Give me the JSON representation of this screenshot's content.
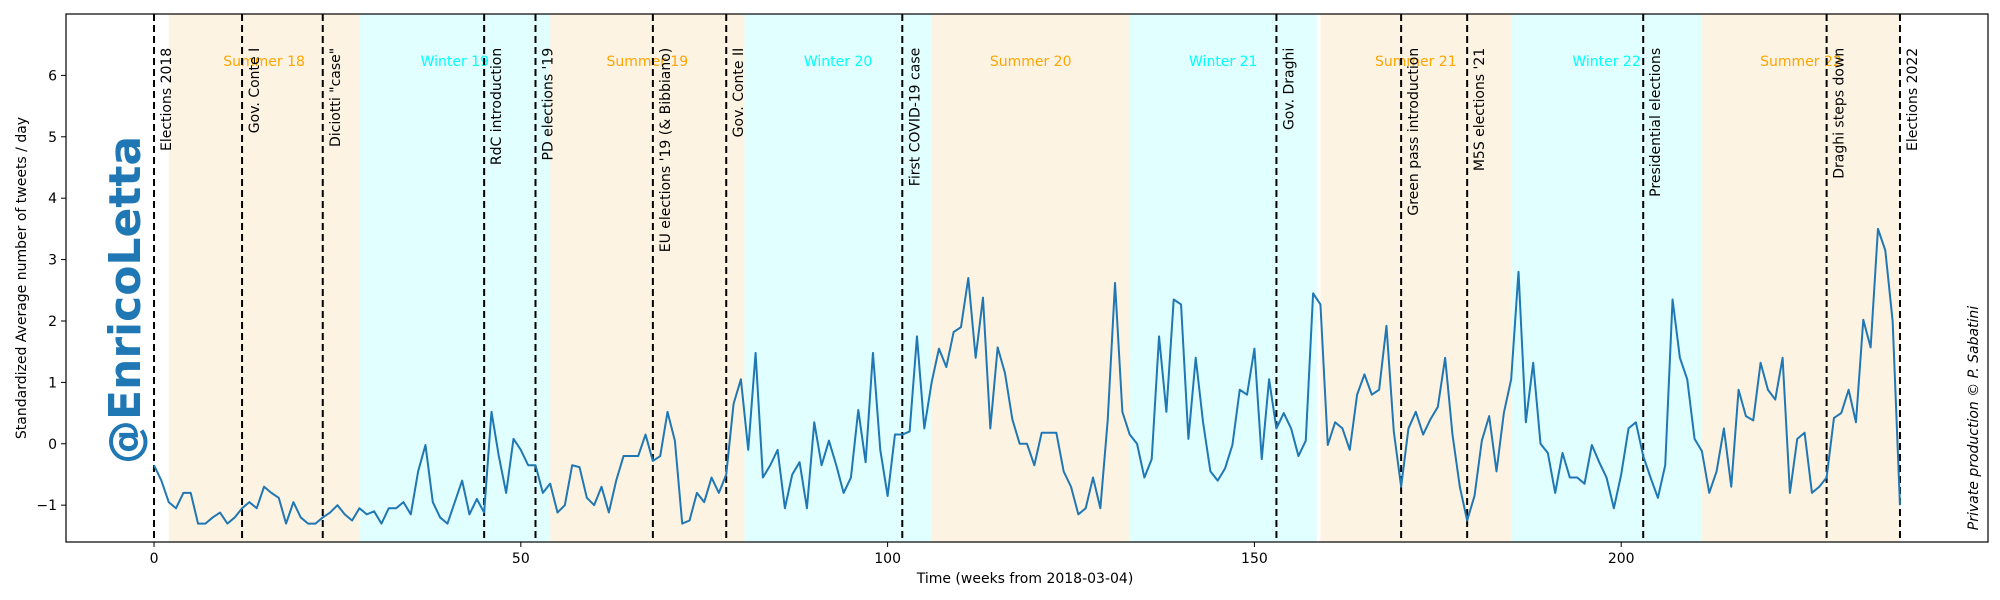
{
  "chart_data": {
    "type": "line",
    "title": "",
    "xlabel": "Time (weeks from 2018-03-04)",
    "ylabel": "Standardized Average number of tweets / day",
    "xlim": [
      -12,
      250
    ],
    "ylim": [
      -1.6,
      7.0
    ],
    "x_ticks": [
      0,
      50,
      100,
      150,
      200
    ],
    "y_ticks": [
      -1,
      0,
      1,
      2,
      3,
      4,
      5,
      6
    ],
    "grid": false,
    "line_color": "#1f77b4",
    "watermark": "@EnricoLetta",
    "credit": "Private production © P. Sabatini",
    "seasons": [
      {
        "label": "Summer 18",
        "start": 2,
        "end": 28,
        "kind": "summer"
      },
      {
        "label": "Winter 19",
        "start": 28,
        "end": 54,
        "kind": "winter"
      },
      {
        "label": "Summer 19",
        "start": 54,
        "end": 80.5,
        "kind": "summer"
      },
      {
        "label": "Winter 20",
        "start": 80.5,
        "end": 106,
        "kind": "winter"
      },
      {
        "label": "Summer 20",
        "start": 106,
        "end": 133,
        "kind": "summer"
      },
      {
        "label": "Winter 21",
        "start": 133,
        "end": 158.5,
        "kind": "winter"
      },
      {
        "label": "Summer 21",
        "start": 159,
        "end": 185,
        "kind": "summer"
      },
      {
        "label": "Winter 22",
        "start": 185,
        "end": 211,
        "kind": "winter"
      },
      {
        "label": "Summer 22",
        "start": 211,
        "end": 238,
        "kind": "summer"
      }
    ],
    "season_colors": {
      "summer": "#fdf3e3",
      "winter": "#e0fffe",
      "summer_text": "#ffa500",
      "winter_text": "#00ffff"
    },
    "events": [
      {
        "label": "Elections 2018",
        "x": 0
      },
      {
        "label": "Gov. Conte I",
        "x": 12
      },
      {
        "label": "Diciotti \"case\"",
        "x": 23
      },
      {
        "label": "RdC introduction",
        "x": 45
      },
      {
        "label": "PD elections '19",
        "x": 52
      },
      {
        "label": "EU elections '19 (& Bibbiano)",
        "x": 68
      },
      {
        "label": "Gov. Conte II",
        "x": 78
      },
      {
        "label": "First COVID-19 case",
        "x": 102
      },
      {
        "label": "Gov. Draghi",
        "x": 153
      },
      {
        "label": "Green pass introduction",
        "x": 170
      },
      {
        "label": "M5S elections '21",
        "x": 179
      },
      {
        "label": "Presidential elections",
        "x": 203
      },
      {
        "label": "Draghi steps down",
        "x": 228
      },
      {
        "label": "Elections 2022",
        "x": 238
      }
    ],
    "series": [
      {
        "values": [
          -0.35,
          -0.6,
          -0.95,
          -1.05,
          -0.8,
          -0.8,
          -1.3,
          -1.3,
          -1.2,
          -1.12,
          -1.3,
          -1.2,
          -1.05,
          -0.95,
          -1.05,
          -0.7,
          -0.8,
          -0.88,
          -1.3,
          -0.95,
          -1.2,
          -1.3,
          -1.3,
          -1.2,
          -1.12,
          -1.0,
          -1.15,
          -1.25,
          -1.05,
          -1.15,
          -1.1,
          -1.3,
          -1.05,
          -1.05,
          -0.95,
          -1.15,
          -0.45,
          -0.02,
          -0.95,
          -1.2,
          -1.3,
          -0.95,
          -0.6,
          -1.15,
          -0.9,
          -1.12,
          0.52,
          -0.2,
          -0.8,
          0.08,
          -0.1,
          -0.35,
          -0.35,
          -0.8,
          -0.65,
          -1.12,
          -1.0,
          -0.35,
          -0.38,
          -0.88,
          -1.0,
          -0.7,
          -1.12,
          -0.6,
          -0.2,
          -0.2,
          -0.2,
          0.15,
          -0.28,
          -0.2,
          0.52,
          0.05,
          -1.3,
          -1.25,
          -0.8,
          -0.95,
          -0.55,
          -0.8,
          -0.5,
          0.65,
          1.05,
          -0.1,
          1.48,
          -0.55,
          -0.35,
          -0.1,
          -1.05,
          -0.5,
          -0.3,
          -1.05,
          0.35,
          -0.35,
          0.05,
          -0.35,
          -0.8,
          -0.55,
          0.55,
          -0.3,
          1.48,
          -0.1,
          -0.85,
          0.15,
          0.15,
          0.2,
          1.75,
          0.25,
          1.0,
          1.55,
          1.25,
          1.82,
          1.9,
          2.7,
          1.4,
          2.38,
          0.25,
          1.57,
          1.15,
          0.4,
          0.0,
          0.0,
          -0.35,
          0.18,
          0.18,
          0.18,
          -0.45,
          -0.7,
          -1.15,
          -1.05,
          -0.55,
          -1.05,
          0.38,
          2.62,
          0.52,
          0.15,
          0.0,
          -0.55,
          -0.25,
          1.75,
          0.52,
          2.35,
          2.27,
          0.08,
          1.4,
          0.35,
          -0.45,
          -0.6,
          -0.4,
          -0.02,
          0.88,
          0.8,
          1.55,
          -0.25,
          1.05,
          0.25,
          0.5,
          0.25,
          -0.2,
          0.05,
          2.45,
          2.27,
          -0.02,
          0.35,
          0.25,
          -0.1,
          0.8,
          1.13,
          0.8,
          0.88,
          1.92,
          0.2,
          -0.7,
          0.25,
          0.52,
          0.15,
          0.4,
          0.6,
          1.4,
          0.15,
          -0.7,
          -1.25,
          -0.85,
          0.05,
          0.45,
          -0.45,
          0.5,
          1.05,
          2.8,
          0.35,
          1.32,
          0.0,
          -0.15,
          -0.8,
          -0.15,
          -0.55,
          -0.55,
          -0.65,
          -0.02,
          -0.3,
          -0.55,
          -1.05,
          -0.5,
          0.25,
          0.35,
          -0.2,
          -0.55,
          -0.88,
          -0.35,
          2.35,
          1.4,
          1.05,
          0.08,
          -0.12,
          -0.8,
          -0.45,
          0.25,
          -0.7,
          0.88,
          0.45,
          0.38,
          1.32,
          0.88,
          0.72,
          1.4,
          -0.8,
          0.08,
          0.18,
          -0.8,
          -0.7,
          -0.55,
          0.42,
          0.5,
          0.88,
          0.35,
          2.02,
          1.57,
          3.5,
          3.15,
          2.0,
          -1.0
        ]
      }
    ]
  }
}
